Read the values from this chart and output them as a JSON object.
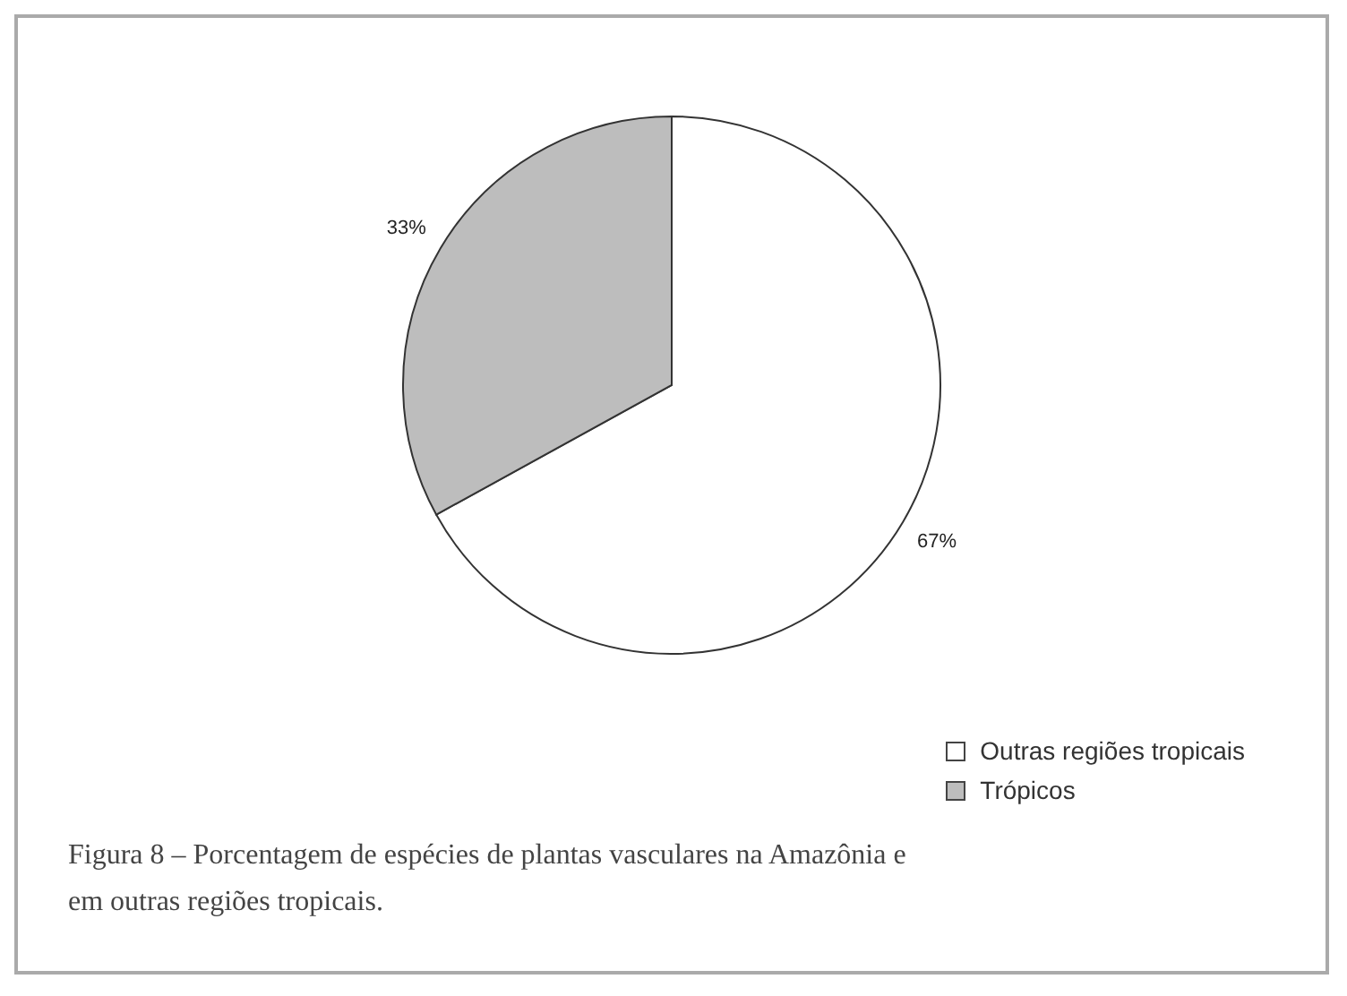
{
  "chart_data": {
    "type": "pie",
    "categories": [
      "Outras regiões tropicais",
      "Trópicos"
    ],
    "values": [
      67,
      33
    ],
    "colors": [
      "#ffffff",
      "#bdbdbd"
    ],
    "value_labels": [
      "67%",
      "33%"
    ],
    "legend": "bottom right",
    "annotations": [
      "Figura 8 – Porcentagem de espécies de plantas vasculares na Amazônia e em outras regiões tropicais."
    ]
  }
}
